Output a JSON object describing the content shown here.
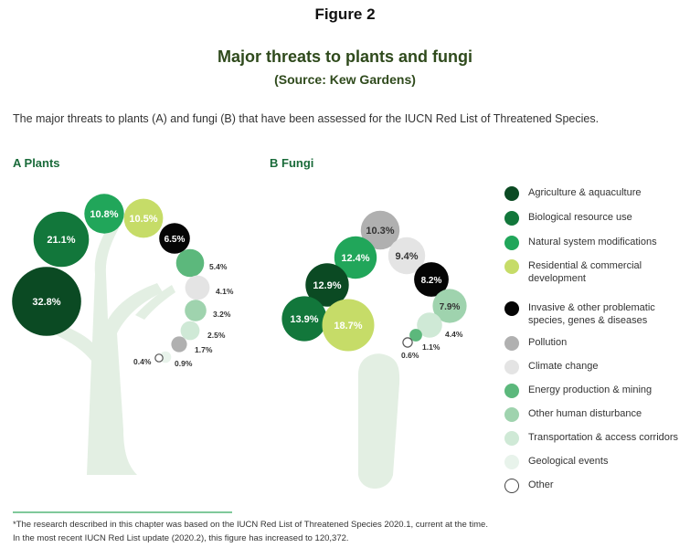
{
  "figure_label": "Figure 2",
  "title": "Major threats to plants and fungi",
  "source": "(Source: Kew Gardens)",
  "caption": "The major threats to plants (A) and fungi (B) that have been assessed for the IUCN Red List of Threatened Species.",
  "footnote_1": "*The research described in this chapter was based on the IUCN Red List of Threatened Species 2020.1, current at the time.",
  "footnote_2": "In the most recent IUCN Red List update (2020.2), this figure has increased to 120,372.",
  "colors": {
    "Agriculture & aquaculture": "#0b4a23",
    "Biological resource use": "#12773b",
    "Natural system modifications": "#21a65a",
    "Residential & commercial development": "#c6dc68",
    "Invasive & other problematic species, genes & diseases": "#050505",
    "Pollution": "#b0b0b0",
    "Climate change": "#e4e4e4",
    "Energy production & mining": "#5cb87c",
    "Other human disturbance": "#9fd3ae",
    "Transportation & access corridors": "#cfe9d6",
    "Geological events": "#e8f3eb",
    "Other": "#ffffff",
    "tree": "#e3efe3"
  },
  "chart_data": [
    {
      "type": "bubble",
      "panel": "A Plants",
      "series": [
        {
          "category": "Agriculture & aquaculture",
          "value": 32.8,
          "label": "32.8%"
        },
        {
          "category": "Biological resource use",
          "value": 21.1,
          "label": "21.1%"
        },
        {
          "category": "Natural system modifications",
          "value": 10.8,
          "label": "10.8%"
        },
        {
          "category": "Residential & commercial development",
          "value": 10.5,
          "label": "10.5%"
        },
        {
          "category": "Invasive & other problematic species, genes & diseases",
          "value": 6.5,
          "label": "6.5%"
        },
        {
          "category": "Energy production & mining",
          "value": 5.4,
          "label": "5.4%"
        },
        {
          "category": "Climate change",
          "value": 4.1,
          "label": "4.1%"
        },
        {
          "category": "Other human disturbance",
          "value": 3.2,
          "label": "3.2%"
        },
        {
          "category": "Transportation & access corridors",
          "value": 2.5,
          "label": "2.5%"
        },
        {
          "category": "Pollution",
          "value": 1.7,
          "label": "1.7%"
        },
        {
          "category": "Geological events",
          "value": 0.9,
          "label": "0.9%"
        },
        {
          "category": "Other",
          "value": 0.4,
          "label": "0.4%"
        }
      ]
    },
    {
      "type": "bubble",
      "panel": "B Fungi",
      "series": [
        {
          "category": "Pollution",
          "value": 10.3,
          "label": "10.3%"
        },
        {
          "category": "Climate change",
          "value": 9.4,
          "label": "9.4%"
        },
        {
          "category": "Natural system modifications",
          "value": 12.4,
          "label": "12.4%"
        },
        {
          "category": "Agriculture & aquaculture",
          "value": 12.9,
          "label": "12.9%"
        },
        {
          "category": "Invasive & other problematic species, genes & diseases",
          "value": 8.2,
          "label": "8.2%"
        },
        {
          "category": "Other human disturbance",
          "value": 7.9,
          "label": "7.9%"
        },
        {
          "category": "Biological resource use",
          "value": 13.9,
          "label": "13.9%"
        },
        {
          "category": "Residential & commercial development",
          "value": 18.7,
          "label": "18.7%"
        },
        {
          "category": "Transportation & access corridors",
          "value": 4.4,
          "label": "4.4%"
        },
        {
          "category": "Energy production & mining",
          "value": 1.1,
          "label": "1.1%"
        },
        {
          "category": "Other",
          "value": 0.6,
          "label": "0.6%"
        }
      ]
    }
  ],
  "legend": [
    {
      "label": "Agriculture & aquaculture"
    },
    {
      "label": "Biological resource use"
    },
    {
      "label": "Natural system modifications"
    },
    {
      "label": "Residential & commercial development"
    },
    {
      "label": "Invasive & other problematic species, genes & diseases"
    },
    {
      "label": "Pollution"
    },
    {
      "label": "Climate change"
    },
    {
      "label": "Energy production & mining"
    },
    {
      "label": "Other human disturbance"
    },
    {
      "label": "Transportation & access corridors"
    },
    {
      "label": "Geological events"
    },
    {
      "label": "Other"
    }
  ]
}
